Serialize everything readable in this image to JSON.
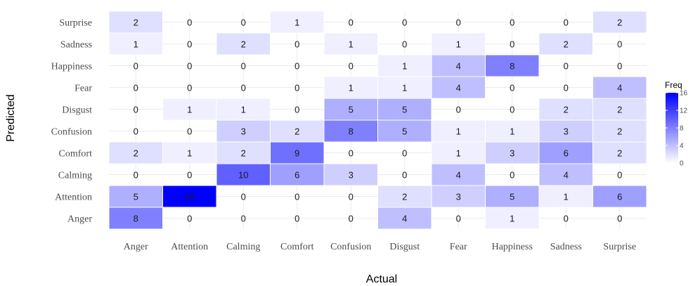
{
  "chart_data": {
    "type": "heatmap",
    "xlabel": "Actual",
    "ylabel": "Predicted",
    "x_categories": [
      "Anger",
      "Attention",
      "Calming",
      "Comfort",
      "Confusion",
      "Disgust",
      "Fear",
      "Happiness",
      "Sadness",
      "Surprise"
    ],
    "y_categories": [
      "Anger",
      "Attention",
      "Calming",
      "Comfort",
      "Confusion",
      "Disgust",
      "Fear",
      "Happiness",
      "Sadness",
      "Surprise"
    ],
    "matrix": {
      "Surprise": [
        2,
        0,
        0,
        1,
        0,
        0,
        0,
        0,
        0,
        2
      ],
      "Sadness": [
        1,
        0,
        2,
        0,
        1,
        0,
        1,
        0,
        2,
        0
      ],
      "Happiness": [
        0,
        0,
        0,
        0,
        0,
        1,
        4,
        8,
        0,
        0
      ],
      "Fear": [
        0,
        0,
        0,
        0,
        1,
        1,
        4,
        0,
        0,
        4
      ],
      "Disgust": [
        0,
        1,
        1,
        0,
        5,
        5,
        0,
        0,
        2,
        2
      ],
      "Confusion": [
        0,
        0,
        3,
        2,
        8,
        5,
        1,
        1,
        3,
        2
      ],
      "Comfort": [
        2,
        1,
        2,
        9,
        0,
        0,
        1,
        3,
        6,
        2
      ],
      "Calming": [
        0,
        0,
        10,
        6,
        3,
        0,
        4,
        0,
        4,
        0
      ],
      "Attention": [
        5,
        16,
        0,
        0,
        0,
        2,
        3,
        5,
        1,
        6
      ],
      "Anger": [
        8,
        0,
        0,
        0,
        0,
        4,
        0,
        1,
        0,
        0
      ]
    },
    "legend": {
      "title": "Freq",
      "ticks": [
        0,
        4,
        8,
        12,
        16
      ],
      "range": [
        0,
        16
      ],
      "color_low": "#ffffff",
      "color_high": "#0000ff"
    },
    "grid": true
  }
}
